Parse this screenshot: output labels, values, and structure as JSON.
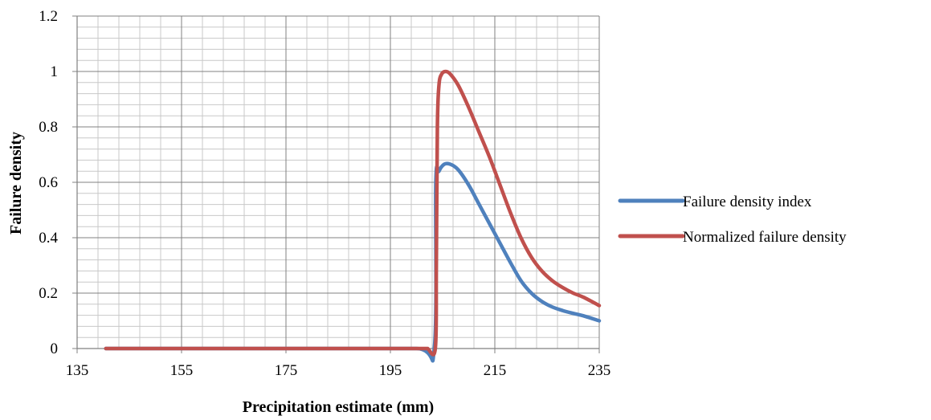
{
  "chart_data": {
    "type": "line",
    "title": "",
    "xlabel": "Precipitation estimate (mm)",
    "ylabel": "Failure density",
    "xlim": [
      135,
      235
    ],
    "ylim": [
      0,
      1.2
    ],
    "x_ticks": [
      "135",
      "155",
      "175",
      "195",
      "215",
      "235"
    ],
    "y_ticks": [
      "0",
      "0.2",
      "0.4",
      "0.6",
      "0.8",
      "1",
      "1.2"
    ],
    "x_major_step": 20,
    "x_minor_step": 4,
    "y_major_step": 0.2,
    "y_minor_step": 0.04,
    "grid": true,
    "legend": "right",
    "series": [
      {
        "name": "Failure density index",
        "color": "#4F81BD",
        "points": [
          [
            140.5,
            0
          ],
          [
            160,
            0
          ],
          [
            180,
            0
          ],
          [
            200,
            0
          ],
          [
            203.4,
            0
          ],
          [
            203.7,
            0.6
          ],
          [
            204.3,
            0.64
          ],
          [
            205.3,
            0.665
          ],
          [
            206.5,
            0.665
          ],
          [
            208,
            0.645
          ],
          [
            210,
            0.59
          ],
          [
            212,
            0.52
          ],
          [
            214,
            0.45
          ],
          [
            216,
            0.38
          ],
          [
            218,
            0.31
          ],
          [
            220,
            0.245
          ],
          [
            222,
            0.2
          ],
          [
            224,
            0.17
          ],
          [
            226,
            0.15
          ],
          [
            228,
            0.137
          ],
          [
            230,
            0.127
          ],
          [
            232,
            0.118
          ],
          [
            235,
            0.1
          ]
        ]
      },
      {
        "name": "Normalized failure density",
        "color": "#C0504D",
        "points": [
          [
            140.5,
            0
          ],
          [
            160,
            0
          ],
          [
            180,
            0
          ],
          [
            200,
            0
          ],
          [
            202,
            0
          ],
          [
            203.6,
            0
          ],
          [
            203.8,
            0.3
          ],
          [
            204,
            0.8
          ],
          [
            204.3,
            0.95
          ],
          [
            204.8,
            0.99
          ],
          [
            205.6,
            1.0
          ],
          [
            206.5,
            0.99
          ],
          [
            208,
            0.95
          ],
          [
            210,
            0.87
          ],
          [
            212,
            0.78
          ],
          [
            214,
            0.69
          ],
          [
            216,
            0.59
          ],
          [
            218,
            0.49
          ],
          [
            220,
            0.4
          ],
          [
            222,
            0.33
          ],
          [
            224,
            0.28
          ],
          [
            226,
            0.245
          ],
          [
            228,
            0.22
          ],
          [
            230,
            0.2
          ],
          [
            232,
            0.185
          ],
          [
            235,
            0.155
          ]
        ]
      }
    ]
  }
}
